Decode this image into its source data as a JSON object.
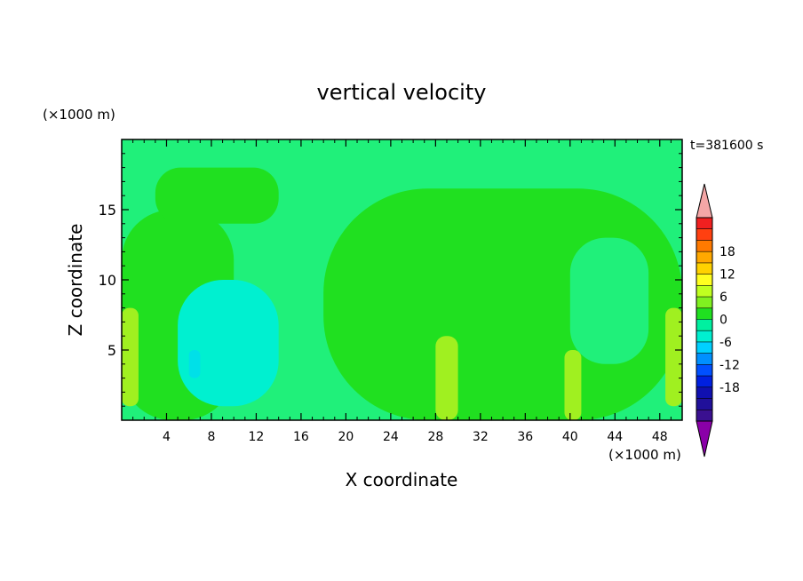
{
  "chart_data": {
    "type": "heatmap",
    "title": "vertical velocity",
    "xlabel": "X coordinate",
    "ylabel": "Z coordinate",
    "x_unit": "(×1000 m)",
    "y_unit": "(×1000 m)",
    "time_label": "t=381600 s",
    "xlim": [
      0,
      50
    ],
    "ylim": [
      0,
      20
    ],
    "x_ticks": [
      4,
      8,
      12,
      16,
      20,
      24,
      28,
      32,
      36,
      40,
      44,
      48
    ],
    "y_ticks": [
      5,
      10,
      15
    ],
    "grid": false,
    "colorbar": {
      "labels": [
        "18",
        "12",
        "6",
        "0",
        "-6",
        "-12",
        "-18"
      ],
      "label_values": [
        18,
        12,
        6,
        0,
        -6,
        -12,
        -18
      ],
      "levels": [
        21,
        18,
        15,
        12,
        9,
        6,
        3,
        0,
        -3,
        -6,
        -9,
        -12,
        -15,
        -18,
        -21
      ],
      "colors": [
        "#f02020",
        "#ff4010",
        "#ff7a00",
        "#ffa800",
        "#ffd200",
        "#ffff20",
        "#c0ff20",
        "#80f020",
        "#20e020",
        "#00f0a0",
        "#00f0d0",
        "#00d0ff",
        "#0090ff",
        "#0050ff",
        "#0020e0",
        "#1010b0",
        "#20109a",
        "#3a1090"
      ],
      "over_color": "#f4a6a6",
      "under_color": "#8a00a8"
    },
    "regions": [
      {
        "name": "background",
        "value": 0.5,
        "color": "#20f07a"
      },
      {
        "name": "main-updraft-region",
        "value": 1.0,
        "color": "#20e020",
        "x": [
          18,
          50
        ],
        "z": [
          0,
          16.5
        ]
      },
      {
        "name": "left-updraft-region",
        "value": 1.0,
        "color": "#20e020",
        "x": [
          0,
          10
        ],
        "z": [
          0,
          15
        ]
      },
      {
        "name": "upper-cloud-band",
        "value": 1.0,
        "color": "#20e020",
        "x": [
          3,
          14
        ],
        "z": [
          14,
          18
        ]
      },
      {
        "name": "right-quiet-region",
        "value": 0.5,
        "color": "#20f07a",
        "x": [
          40,
          47
        ],
        "z": [
          4,
          13
        ]
      },
      {
        "name": "left-downdraft",
        "value": -2.5,
        "color": "#00f0d0",
        "x": [
          5,
          14
        ],
        "z": [
          1,
          10
        ]
      },
      {
        "name": "downdraft-core",
        "value": -4,
        "color": "#00e0e8",
        "x": [
          6,
          7
        ],
        "z": [
          3,
          5
        ]
      },
      {
        "name": "updraft-x1",
        "value": 4,
        "color": "#a0f020",
        "x": [
          0,
          1.5
        ],
        "z": [
          1,
          8
        ]
      },
      {
        "name": "updraft-x29",
        "value": 4,
        "color": "#a0f020",
        "x": [
          28,
          30
        ],
        "z": [
          0,
          6
        ]
      },
      {
        "name": "updraft-x40",
        "value": 3,
        "color": "#a0f020",
        "x": [
          39.5,
          41
        ],
        "z": [
          0,
          5
        ]
      },
      {
        "name": "updraft-x49",
        "value": 4,
        "color": "#a0f020",
        "x": [
          48.5,
          50
        ],
        "z": [
          1,
          8
        ]
      }
    ]
  }
}
